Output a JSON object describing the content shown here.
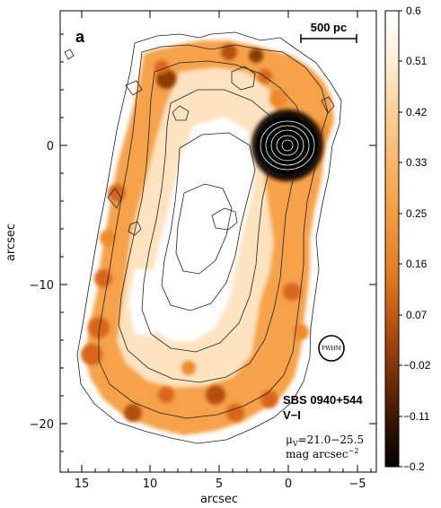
{
  "panel": {
    "label": "a",
    "object_name": "SBS 0940+544",
    "color_index": "V−I",
    "surface_brightness_line1": "μ",
    "surface_brightness_sub": "V",
    "surface_brightness_rest": "=21.0−25.5",
    "surface_brightness_line2": "mag arcsec",
    "surface_brightness_exp": "−2",
    "beam_label": "FWHM"
  },
  "scalebar": {
    "label": "500 pc"
  },
  "axes": {
    "xlabel": "arcsec",
    "ylabel": "arcsec",
    "x_range": [
      16.5,
      -6.0
    ],
    "y_range": [
      -23.5,
      8.5
    ],
    "x_ticks": [
      "15",
      "10",
      "5",
      "0",
      "−5"
    ],
    "x_tick_values": [
      15,
      10,
      5,
      0,
      -5
    ],
    "y_ticks": [
      "0",
      "−10",
      "−20"
    ],
    "y_tick_values": [
      0,
      -10,
      -20
    ]
  },
  "colorbar": {
    "ticks": [
      "0.6",
      "0.51",
      "0.42",
      "0.33",
      "0.25",
      "0.16",
      "0.07",
      "−0.02",
      "−0.11",
      "−0.2"
    ],
    "range": [
      -0.2,
      0.6
    ],
    "colors": [
      "#050200",
      "#2a1000",
      "#5a2400",
      "#8a3a05",
      "#b35010",
      "#d8661a",
      "#ee8a2c",
      "#f8ad5c",
      "#fcd19a",
      "#fff0dc",
      "#ffffff"
    ]
  }
}
